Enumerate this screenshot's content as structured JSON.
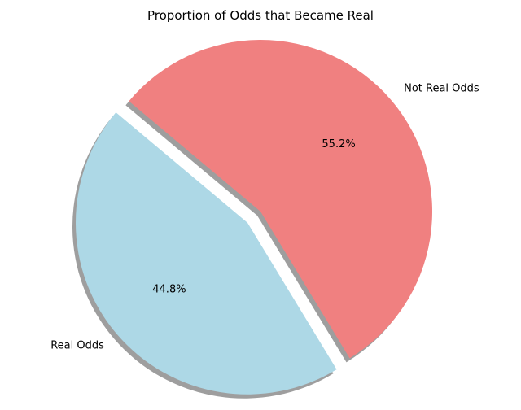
{
  "chart_data": {
    "type": "pie",
    "title": "Proportion of Odds that Became Real",
    "slices": [
      {
        "label": "Real Odds",
        "value": 44.8,
        "pct_label": "44.8%",
        "color": "#add8e6",
        "explode": 0.1
      },
      {
        "label": "Not Real Odds",
        "value": 55.2,
        "pct_label": "55.2%",
        "color": "#f08080",
        "explode": 0
      }
    ],
    "start_angle_deg": 140,
    "shadow": true,
    "legend": "none"
  }
}
